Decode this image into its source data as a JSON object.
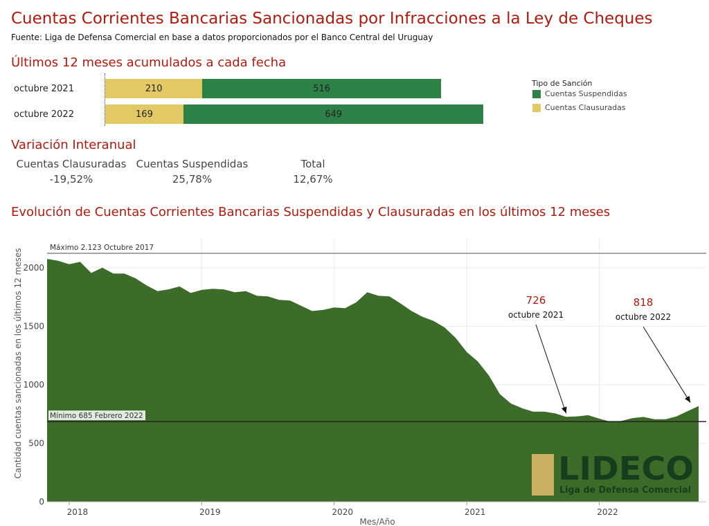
{
  "title": "Cuentas Corrientes Bancarias Sancionadas por Infracciones a la Ley de Cheques",
  "source": "Fuente: Liga de Defensa Comercial en base a datos proporcionados por el Banco Central del Uruguay",
  "colors": {
    "suspendidas": "#2e8146",
    "clausuradas": "#e2c965",
    "area": "#3d6b2a",
    "title": "#b01a10"
  },
  "bars_section": {
    "title": "Últimos 12 meses acumulados a cada fecha",
    "rows": [
      {
        "label": "octubre 2021",
        "clausuradas": 210,
        "suspendidas": 516
      },
      {
        "label": "octubre 2022",
        "clausuradas": 169,
        "suspendidas": 649
      }
    ],
    "legend": {
      "title": "Tipo de Sanción",
      "items": [
        "Cuentas Suspendidas",
        "Cuentas Clausuradas"
      ]
    }
  },
  "variation_section": {
    "title": "Variación Interanual",
    "items": [
      {
        "label": "Cuentas Clausuradas",
        "value": "-19,52%"
      },
      {
        "label": "Cuentas Suspendidas",
        "value": "25,78%"
      },
      {
        "label": "Total",
        "value": "12,67%"
      }
    ]
  },
  "chart_section": {
    "title": "Evolución de Cuentas Corrientes Bancarias Suspendidas y Clausuradas en los últimos 12 meses"
  },
  "chart_data": {
    "type": "area",
    "xlabel": "Mes/Año",
    "ylabel": "Cantidad cuentas sancionadas en los últimos 12 meses",
    "ylim": [
      0,
      2200
    ],
    "yticks": [
      0,
      500,
      1000,
      1500,
      2000
    ],
    "xticks": [
      "2018",
      "2019",
      "2020",
      "2021",
      "2022"
    ],
    "grid": true,
    "x": [
      "2017-11",
      "2017-12",
      "2018-01",
      "2018-02",
      "2018-03",
      "2018-04",
      "2018-05",
      "2018-06",
      "2018-07",
      "2018-08",
      "2018-09",
      "2018-10",
      "2018-11",
      "2018-12",
      "2019-01",
      "2019-02",
      "2019-03",
      "2019-04",
      "2019-05",
      "2019-06",
      "2019-07",
      "2019-08",
      "2019-09",
      "2019-10",
      "2019-11",
      "2019-12",
      "2020-01",
      "2020-02",
      "2020-03",
      "2020-04",
      "2020-05",
      "2020-06",
      "2020-07",
      "2020-08",
      "2020-09",
      "2020-10",
      "2020-11",
      "2020-12",
      "2021-01",
      "2021-02",
      "2021-03",
      "2021-04",
      "2021-05",
      "2021-06",
      "2021-07",
      "2021-08",
      "2021-09",
      "2021-10",
      "2021-11",
      "2021-12",
      "2022-01",
      "2022-02",
      "2022-03",
      "2022-04",
      "2022-05",
      "2022-06",
      "2022-07",
      "2022-08",
      "2022-09",
      "2022-10"
    ],
    "series": [
      {
        "values": [
          2075,
          2060,
          2030,
          2050,
          1955,
          2000,
          1950,
          1950,
          1910,
          1850,
          1800,
          1815,
          1840,
          1785,
          1810,
          1820,
          1815,
          1790,
          1800,
          1760,
          1755,
          1725,
          1720,
          1675,
          1630,
          1640,
          1660,
          1655,
          1705,
          1790,
          1760,
          1755,
          1695,
          1630,
          1580,
          1545,
          1490,
          1400,
          1280,
          1200,
          1080,
          920,
          840,
          800,
          770,
          770,
          755,
          726,
          730,
          740,
          710,
          685,
          690,
          715,
          725,
          705,
          705,
          730,
          775,
          818
        ]
      }
    ],
    "reference_lines": [
      {
        "value": 2123,
        "label": "Máximo 2.123 Octubre 2017"
      },
      {
        "value": 685,
        "label": "Mínimo 685 Febrero 2022"
      }
    ],
    "annotations": [
      {
        "value": "726",
        "label": "octubre 2021",
        "x": "2021-10"
      },
      {
        "value": "818",
        "label": "octubre 2022",
        "x": "2022-10"
      }
    ],
    "logo": {
      "name": "LIDECO",
      "tagline": "Liga de Defensa Comercial"
    }
  }
}
